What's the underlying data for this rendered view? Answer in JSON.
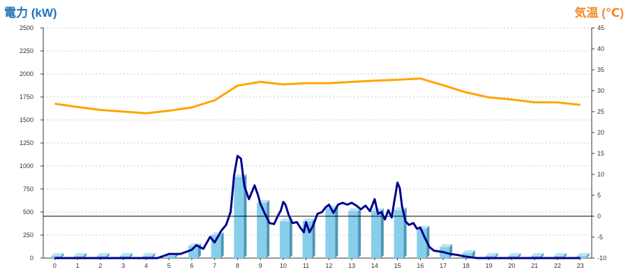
{
  "left_axis_title": "電力 (kW)",
  "right_axis_title": "気温 (℃)",
  "chart_data": {
    "type": "bar",
    "x_categories": [
      "0",
      "1",
      "2",
      "3",
      "4",
      "5",
      "6",
      "7",
      "8",
      "9",
      "10",
      "11",
      "12",
      "13",
      "14",
      "15",
      "16",
      "17",
      "18",
      "19",
      "20",
      "21",
      "22",
      "23"
    ],
    "y_left": {
      "min": 0,
      "max": 2500,
      "step": 250
    },
    "y_right": {
      "min": -10,
      "max": 45,
      "step": 5
    },
    "grid": true,
    "series": [
      {
        "kind": "bar",
        "axis": "left",
        "color": "#87ceeb",
        "values": [
          25,
          25,
          25,
          25,
          25,
          25,
          130,
          250,
          880,
          600,
          400,
          400,
          540,
          510,
          510,
          520,
          320,
          120,
          55,
          25,
          25,
          25,
          25,
          25
        ]
      },
      {
        "kind": "line",
        "axis": "left",
        "color": "#00008b",
        "x": [
          0,
          1,
          2,
          3,
          4,
          4.5,
          5,
          5.5,
          6,
          6.2,
          6.5,
          6.8,
          7,
          7.3,
          7.5,
          7.7,
          7.85,
          8,
          8.15,
          8.3,
          8.5,
          8.6,
          8.75,
          8.9,
          9,
          9.2,
          9.4,
          9.6,
          9.75,
          9.9,
          10,
          10.1,
          10.25,
          10.4,
          10.6,
          10.75,
          10.9,
          11,
          11.15,
          11.3,
          11.5,
          11.7,
          11.85,
          12,
          12.2,
          12.4,
          12.6,
          12.8,
          13,
          13.2,
          13.4,
          13.6,
          13.8,
          14,
          14.15,
          14.3,
          14.45,
          14.6,
          14.75,
          14.85,
          15,
          15.1,
          15.2,
          15.35,
          15.5,
          15.7,
          15.85,
          16,
          16.2,
          16.4,
          16.6,
          17,
          17.3,
          17.6,
          18,
          18.5,
          19,
          20,
          21,
          22,
          23
        ],
        "values": [
          0,
          0,
          0,
          0,
          0,
          0,
          45,
          45,
          90,
          140,
          100,
          230,
          170,
          300,
          360,
          500,
          900,
          1110,
          1080,
          780,
          640,
          700,
          790,
          680,
          590,
          480,
          380,
          370,
          450,
          520,
          610,
          580,
          460,
          380,
          390,
          330,
          280,
          390,
          280,
          350,
          480,
          500,
          550,
          580,
          490,
          580,
          600,
          580,
          600,
          570,
          530,
          570,
          510,
          640,
          480,
          500,
          420,
          520,
          440,
          600,
          820,
          760,
          560,
          400,
          360,
          380,
          320,
          330,
          220,
          120,
          80,
          65,
          45,
          35,
          15,
          0,
          0,
          0,
          0,
          0,
          0
        ]
      },
      {
        "kind": "line",
        "axis": "right",
        "color": "#ffa500",
        "x": [
          0,
          1,
          2,
          3,
          4,
          5,
          6,
          7,
          8,
          9,
          10,
          11,
          12,
          13,
          14,
          15,
          16,
          17,
          18,
          19,
          20,
          21,
          22,
          23
        ],
        "values": [
          26.9,
          26.1,
          25.4,
          25.0,
          24.6,
          25.2,
          26.0,
          27.7,
          31.2,
          32.1,
          31.5,
          31.8,
          31.8,
          32.1,
          32.4,
          32.6,
          32.9,
          31.3,
          29.6,
          28.4,
          27.9,
          27.2,
          27.2,
          26.6
        ]
      }
    ],
    "reference_line": {
      "axis": "right",
      "value": 0,
      "color": "#000000"
    }
  }
}
